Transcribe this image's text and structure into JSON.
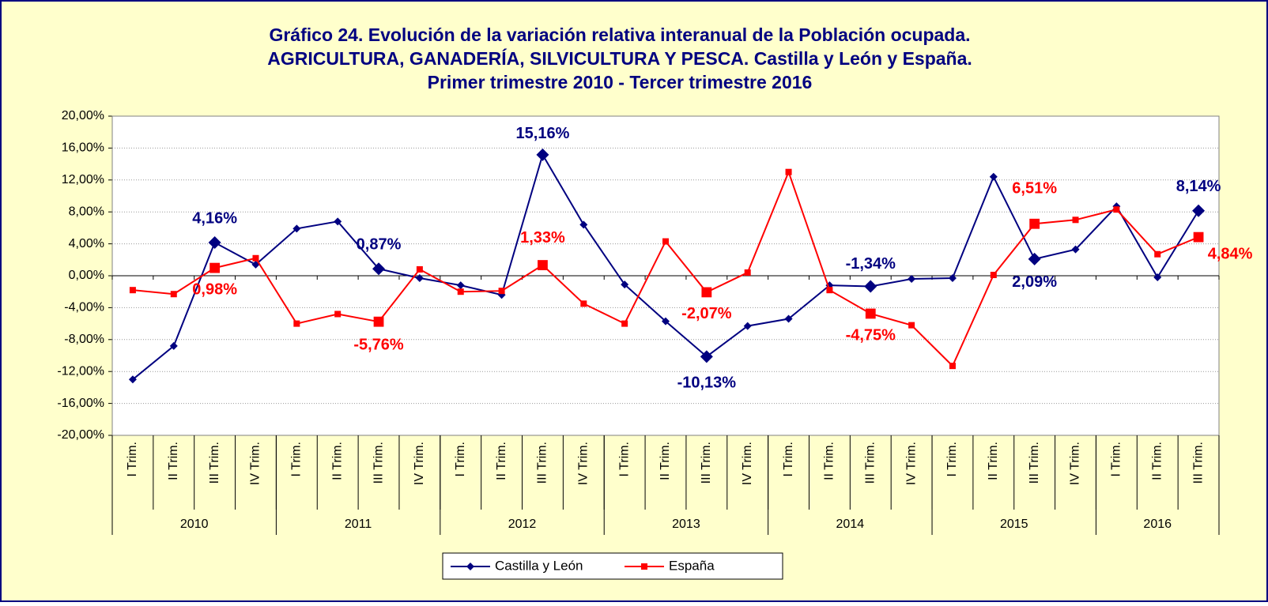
{
  "chart_data": {
    "type": "line",
    "title": [
      "Gráfico 24. Evolución de la variación relativa interanual de la Población ocupada.",
      "AGRICULTURA, GANADERÍA, SILVICULTURA Y PESCA. Castilla y León y España.",
      "Primer trimestre 2010 - Tercer trimestre 2016"
    ],
    "categories": [
      "I Trim.",
      "II Trim.",
      "III Trim.",
      "IV Trim.",
      "I Trim.",
      "II Trim.",
      "III Trim.",
      "IV Trim.",
      "I Trim.",
      "II Trim.",
      "III Trim.",
      "IV Trim.",
      "I Trim.",
      "II Trim.",
      "III Trim.",
      "IV Trim.",
      "I Trim.",
      "II Trim.",
      "III Trim.",
      "IV Trim.",
      "I Trim.",
      "II Trim.",
      "III Trim.",
      "IV Trim.",
      "I Trim.",
      "II Trim.",
      "III Trim."
    ],
    "year_groups": [
      {
        "label": "2010",
        "count": 4
      },
      {
        "label": "2011",
        "count": 4
      },
      {
        "label": "2012",
        "count": 4
      },
      {
        "label": "2013",
        "count": 4
      },
      {
        "label": "2014",
        "count": 4
      },
      {
        "label": "2015",
        "count": 4
      },
      {
        "label": "2016",
        "count": 3
      }
    ],
    "series": [
      {
        "name": "Castilla y León",
        "color": "#000080",
        "marker": "diamond",
        "values": [
          -13.0,
          -8.8,
          4.16,
          1.4,
          5.9,
          6.8,
          0.87,
          -0.3,
          -1.2,
          -2.4,
          15.16,
          6.4,
          -1.1,
          -5.7,
          -10.13,
          -6.3,
          -5.4,
          -1.2,
          -1.34,
          -0.4,
          -0.3,
          12.4,
          2.09,
          3.3,
          8.7,
          -0.2,
          8.14
        ],
        "value_labels": [
          null,
          null,
          "4,16%",
          null,
          null,
          null,
          "0,87%",
          null,
          null,
          null,
          "15,16%",
          null,
          null,
          null,
          "-10,13%",
          null,
          null,
          null,
          "-1,34%",
          null,
          null,
          null,
          "2,09%",
          null,
          null,
          null,
          "8,14%"
        ]
      },
      {
        "name": "España",
        "color": "#ff0000",
        "marker": "square",
        "values": [
          -1.8,
          -2.3,
          0.98,
          2.2,
          -6.0,
          -4.8,
          -5.76,
          0.8,
          -2.0,
          -1.9,
          1.33,
          -3.5,
          -6.0,
          4.3,
          -2.07,
          0.4,
          13.0,
          -1.8,
          -4.75,
          -6.2,
          -11.3,
          0.1,
          6.51,
          7.0,
          8.3,
          2.7,
          4.84
        ],
        "value_labels": [
          null,
          null,
          "0,98%",
          null,
          null,
          null,
          "-5,76%",
          null,
          null,
          null,
          "1,33%",
          null,
          null,
          null,
          "-2,07%",
          null,
          null,
          null,
          "-4,75%",
          null,
          null,
          null,
          "6,51%",
          null,
          null,
          null,
          "4,84%"
        ]
      }
    ],
    "ylim": [
      -20,
      20
    ],
    "yticks": [
      {
        "value": -20,
        "label": "-20,00%"
      },
      {
        "value": -16,
        "label": "-16,00%"
      },
      {
        "value": -12,
        "label": "-12,00%"
      },
      {
        "value": -8,
        "label": "-8,00%"
      },
      {
        "value": -4,
        "label": "-4,00%"
      },
      {
        "value": 0,
        "label": "0,00%"
      },
      {
        "value": 4,
        "label": "4,00%"
      },
      {
        "value": 8,
        "label": "8,00%"
      },
      {
        "value": 12,
        "label": "12,00%"
      },
      {
        "value": 16,
        "label": "16,00%"
      },
      {
        "value": 20,
        "label": "20,00%"
      }
    ],
    "grid": true,
    "legend": "bottom"
  }
}
